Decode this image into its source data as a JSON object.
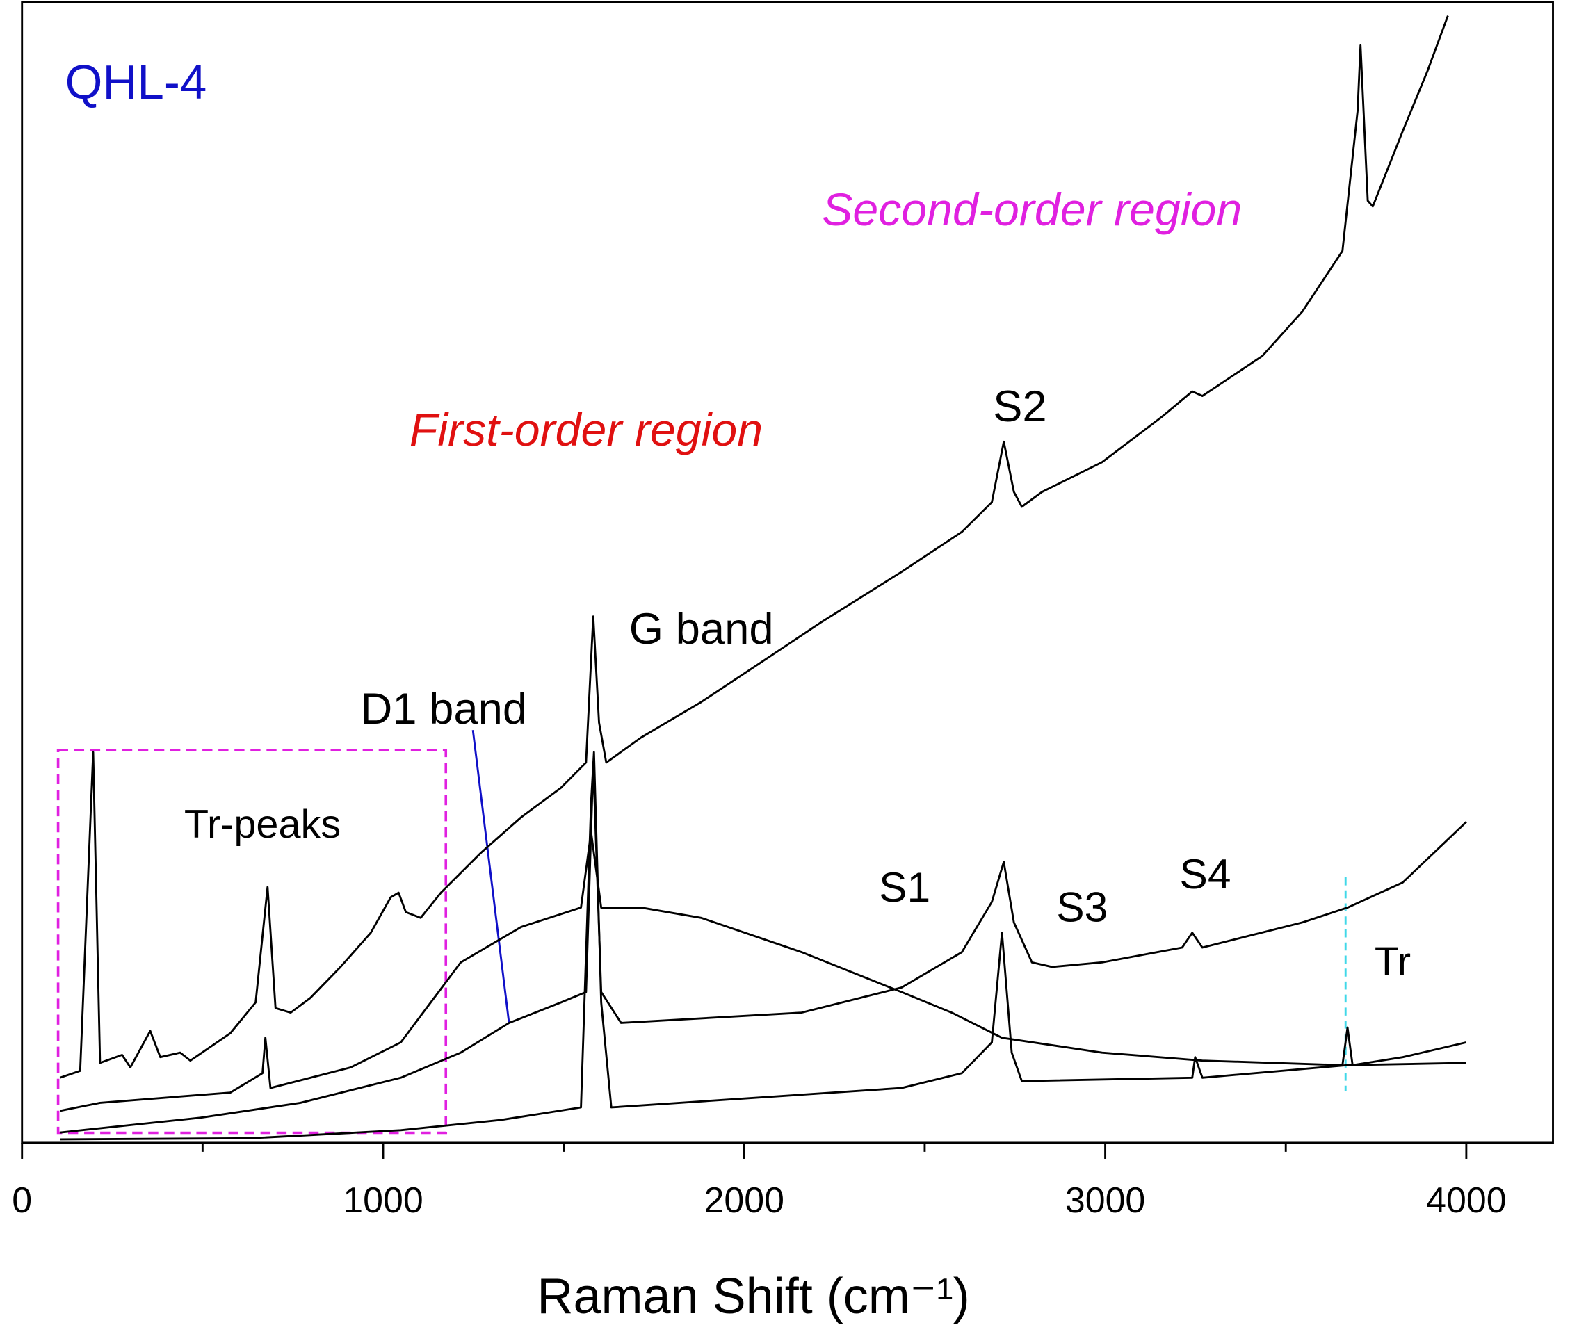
{
  "chart_data": {
    "type": "line",
    "x_label": "Raman Shift (cm⁻¹)",
    "xlim": [
      0,
      4240
    ],
    "xticks": [
      0,
      1000,
      2000,
      3000,
      4000
    ],
    "xticks_minor": [
      500,
      1500,
      2500,
      3500
    ],
    "ylim": [
      0,
      100
    ],
    "series": [
      {
        "color": "#000000",
        "x": [
          105,
          161,
          197,
          216,
          277,
          300,
          355,
          383,
          438,
          466,
          577,
          647,
          680,
          702,
          744,
          799,
          882,
          966,
          1021,
          1043,
          1063,
          1104,
          1160,
          1271,
          1382,
          1493,
          1562,
          1582,
          1598,
          1618,
          1715,
          1881,
          2048,
          2214,
          2436,
          2603,
          2686,
          2719,
          2747,
          2769,
          2825,
          2991,
          3158,
          3241,
          3269,
          3435,
          3546,
          3657,
          3699,
          3707,
          3727,
          3741,
          3824,
          3893,
          3949
        ],
        "values": [
          5.7,
          6.3,
          34.2,
          7.0,
          7.7,
          6.6,
          9.8,
          7.5,
          7.9,
          7.2,
          9.6,
          12.3,
          22.4,
          11.8,
          11.4,
          12.7,
          15.4,
          18.4,
          21.5,
          21.9,
          20.2,
          19.7,
          21.9,
          25.4,
          28.5,
          31.1,
          33.3,
          46.1,
          36.8,
          33.3,
          35.5,
          38.6,
          42.1,
          45.6,
          50.0,
          53.5,
          56.1,
          61.4,
          57.0,
          55.7,
          57.0,
          59.6,
          63.6,
          65.8,
          65.4,
          68.9,
          72.8,
          78.1,
          90.4,
          96.1,
          82.5,
          82.0,
          88.6,
          93.9,
          98.7
        ]
      },
      {
        "color": "#000000",
        "x": [
          105,
          216,
          577,
          666,
          674,
          688,
          910,
          1049,
          1215,
          1382,
          1548,
          1576,
          1604,
          1715,
          1881,
          2159,
          2436,
          2575,
          2714,
          2991,
          3269,
          3657,
          3671,
          3685,
          3824,
          4000
        ],
        "values": [
          2.8,
          3.5,
          4.4,
          6.1,
          9.2,
          4.8,
          6.6,
          8.8,
          15.8,
          18.9,
          20.6,
          27.2,
          20.6,
          20.6,
          19.7,
          16.7,
          13.2,
          11.4,
          9.2,
          7.9,
          7.2,
          6.8,
          10.1,
          6.8,
          7.5,
          8.8
        ]
      },
      {
        "color": "#000000",
        "x": [
          105,
          494,
          771,
          1049,
          1215,
          1349,
          1493,
          1562,
          1582,
          1604,
          1659,
          2159,
          2436,
          2603,
          2686,
          2719,
          2747,
          2797,
          2853,
          2991,
          3213,
          3241,
          3269,
          3546,
          3671,
          3824,
          4000
        ],
        "values": [
          0.9,
          2.2,
          3.5,
          5.7,
          7.9,
          10.5,
          12.3,
          13.2,
          33.3,
          13.2,
          10.5,
          11.4,
          13.6,
          16.7,
          21.1,
          24.6,
          19.3,
          15.8,
          15.4,
          15.8,
          17.1,
          18.4,
          17.1,
          19.3,
          20.6,
          22.8,
          28.1
        ]
      },
      {
        "color": "#000000",
        "x": [
          105,
          633,
          1049,
          1326,
          1548,
          1576,
          1584,
          1604,
          1632,
          2436,
          2603,
          2686,
          2714,
          2741,
          2769,
          3241,
          3249,
          3269,
          3671,
          4000
        ],
        "values": [
          0.3,
          0.4,
          1.1,
          2.0,
          3.1,
          29.8,
          34.2,
          12.3,
          3.1,
          4.8,
          6.1,
          8.8,
          18.4,
          7.9,
          5.4,
          5.7,
          7.5,
          5.7,
          6.8,
          7.0
        ]
      }
    ],
    "annotations": [
      {
        "text": "QHL-4",
        "color": "#1010c8"
      },
      {
        "text": "Second-order region",
        "color": "#e020e0"
      },
      {
        "text": "First-order region",
        "color": "#e01010"
      },
      {
        "text": "S2",
        "color": "#000000"
      },
      {
        "text": "G band",
        "color": "#000000"
      },
      {
        "text": "D1 band",
        "color": "#000000"
      },
      {
        "text": "Tr-peaks",
        "color": "#000000"
      },
      {
        "text": "S1",
        "color": "#000000"
      },
      {
        "text": "S3",
        "color": "#000000"
      },
      {
        "text": "S4",
        "color": "#000000"
      },
      {
        "text": "Tr",
        "color": "#000000"
      }
    ]
  }
}
